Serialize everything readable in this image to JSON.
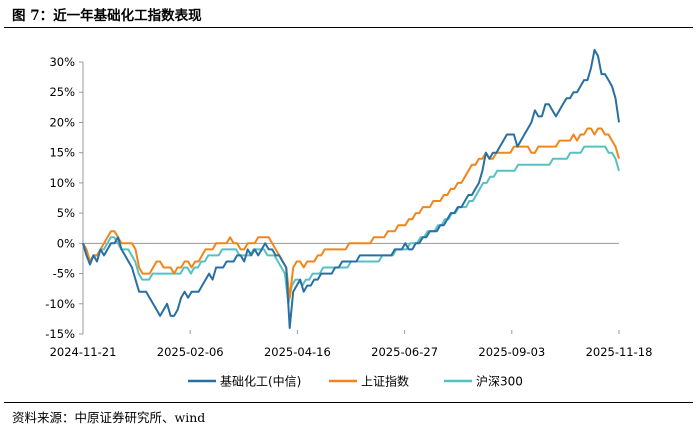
{
  "header": {
    "title": "图 7：近一年基础化工指数表现"
  },
  "footer": {
    "source": "资料来源：中原证券研究所、wind"
  },
  "chart_data": {
    "type": "line",
    "x_tick_labels": [
      "2024-11-21",
      "2025-02-06",
      "2025-04-16",
      "2025-06-27",
      "2025-09-03",
      "2025-11-18"
    ],
    "ylim": [
      -15,
      30
    ],
    "yticks": [
      -15,
      -10,
      -5,
      0,
      5,
      10,
      15,
      20,
      25,
      30
    ],
    "y_unit": "%",
    "legend_position": "bottom",
    "grid": false,
    "series": [
      {
        "name": "基础化工(中信)",
        "color": "#2a6fa1",
        "values": [
          0,
          -2,
          -3.5,
          -2,
          -3,
          -1,
          -2,
          -1,
          0,
          0,
          1,
          -1,
          -2,
          -3,
          -4,
          -6,
          -8,
          -8,
          -8,
          -9,
          -10,
          -11,
          -12,
          -11,
          -10,
          -12,
          -12,
          -11,
          -9,
          -8,
          -9,
          -8,
          -8,
          -8,
          -7,
          -6,
          -5,
          -6,
          -4,
          -4,
          -4,
          -3,
          -3,
          -3,
          -2,
          -2,
          -3,
          -1,
          -2,
          -1,
          -2,
          -1,
          0,
          -1,
          -1,
          -2,
          -2,
          -3,
          -4,
          -14,
          -8,
          -7,
          -6,
          -8,
          -7,
          -7,
          -6,
          -6,
          -5,
          -5,
          -5,
          -5,
          -4,
          -4,
          -3,
          -3,
          -3,
          -3,
          -3,
          -2,
          -2,
          -2,
          -2,
          -2,
          -2,
          -2,
          -2,
          -2,
          -2,
          -1,
          -1,
          -1,
          0,
          -1,
          -1,
          0,
          0,
          1,
          1,
          2,
          2,
          2,
          3,
          3,
          4,
          5,
          5,
          6,
          6,
          7,
          8,
          8,
          9,
          10,
          12,
          15,
          14,
          15,
          15,
          16,
          17,
          18,
          18,
          18,
          16,
          17,
          18,
          19,
          20,
          22,
          21,
          21,
          23,
          23,
          22,
          21,
          22,
          23,
          24,
          24,
          25,
          25,
          26,
          27,
          27,
          29,
          32,
          31,
          28,
          28,
          27,
          26,
          24,
          20
        ]
      },
      {
        "name": "上证指数",
        "color": "#f0861a",
        "values": [
          0,
          -1,
          -3,
          -2,
          -2,
          -1,
          0,
          1,
          2,
          2,
          1,
          0,
          0,
          0,
          0,
          -1,
          -4,
          -5,
          -5,
          -5,
          -4,
          -3,
          -3,
          -4,
          -4,
          -4,
          -5,
          -4,
          -4,
          -3,
          -3,
          -4,
          -3,
          -3,
          -2,
          -1,
          -1,
          -1,
          0,
          0,
          0,
          0,
          1,
          0,
          0,
          -1,
          -1,
          0,
          0,
          0,
          1,
          1,
          1,
          1,
          0,
          -1,
          -2,
          -3,
          -4,
          -9,
          -4,
          -3,
          -3,
          -4,
          -3,
          -3,
          -3,
          -2,
          -2,
          -1,
          -1,
          -1,
          -1,
          -1,
          -1,
          -1,
          0,
          0,
          0,
          0,
          0,
          0,
          0,
          1,
          1,
          1,
          1,
          2,
          2,
          2,
          3,
          3,
          3,
          4,
          4,
          5,
          5,
          6,
          6,
          6,
          7,
          7,
          7,
          8,
          8,
          9,
          9,
          10,
          10,
          11,
          12,
          13,
          13,
          14,
          14,
          15,
          14,
          14,
          15,
          15,
          15,
          15,
          15,
          16,
          16,
          16,
          16,
          16,
          15,
          15,
          16,
          16,
          16,
          16,
          16,
          16,
          17,
          17,
          17,
          17,
          18,
          17,
          18,
          18,
          19,
          19,
          18,
          19,
          19,
          18,
          18,
          17,
          16,
          14
        ]
      },
      {
        "name": "沪深300",
        "color": "#56c1c3",
        "values": [
          0,
          -2,
          -3,
          -2,
          -2,
          -1,
          -1,
          0,
          1,
          1,
          0,
          -1,
          -1,
          -1,
          -2,
          -3,
          -5,
          -6,
          -6,
          -6,
          -5,
          -5,
          -5,
          -5,
          -5,
          -5,
          -5,
          -5,
          -5,
          -4,
          -4,
          -5,
          -4,
          -4,
          -3,
          -3,
          -2,
          -2,
          -2,
          -2,
          -1,
          -1,
          -1,
          -1,
          -1,
          -2,
          -2,
          -2,
          -2,
          -1,
          -1,
          -1,
          -1,
          -2,
          -2,
          -2,
          -3,
          -4,
          -5,
          -10,
          -7,
          -6,
          -6,
          -7,
          -6,
          -6,
          -5,
          -5,
          -5,
          -4,
          -4,
          -4,
          -4,
          -4,
          -4,
          -4,
          -4,
          -3,
          -3,
          -3,
          -3,
          -3,
          -3,
          -3,
          -3,
          -3,
          -2,
          -2,
          -2,
          -2,
          -1,
          -1,
          -1,
          -1,
          0,
          0,
          0,
          1,
          1,
          2,
          2,
          2,
          3,
          3,
          4,
          4,
          5,
          5,
          6,
          6,
          6,
          7,
          7,
          8,
          9,
          10,
          10,
          11,
          11,
          12,
          12,
          12,
          12,
          12,
          12,
          13,
          13,
          13,
          13,
          13,
          13,
          13,
          13,
          13,
          13,
          14,
          14,
          14,
          14,
          14,
          15,
          15,
          15,
          15,
          16,
          16,
          16,
          16,
          16,
          16,
          16,
          15,
          15,
          14,
          12
        ]
      }
    ]
  }
}
